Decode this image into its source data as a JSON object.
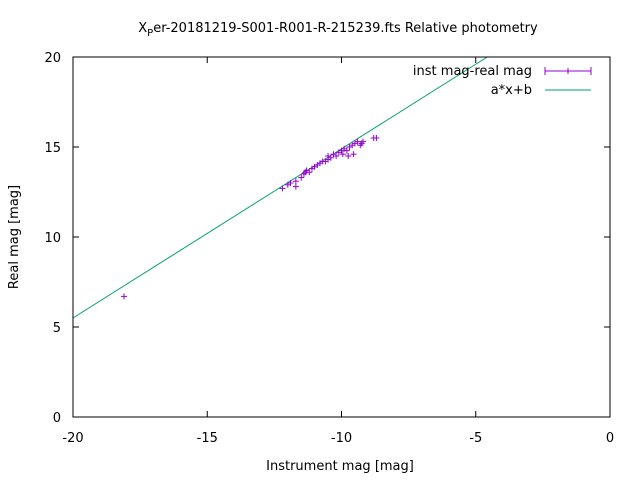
{
  "chart_data": {
    "type": "scatter",
    "title_symbol": "X",
    "title_subscript": "P",
    "title_rest": "er-20181219-S001-R001-R-215239.fts Relative photometry",
    "xlabel": "Instrument mag [mag]",
    "ylabel": "Real mag [mag]",
    "xlim": [
      -20,
      0
    ],
    "ylim": [
      0,
      20
    ],
    "x_ticks": [
      -20,
      -15,
      -10,
      -5,
      0
    ],
    "y_ticks": [
      0,
      5,
      10,
      15,
      20
    ],
    "grid": false,
    "legend_position": "top-right",
    "series": [
      {
        "name": "inst mag-real mag",
        "kind": "points-with-errorbars",
        "color": "#9400d3",
        "points": [
          [
            -18.1,
            6.7
          ],
          [
            -12.2,
            12.7
          ],
          [
            -12.0,
            12.9
          ],
          [
            -11.9,
            13.0
          ],
          [
            -11.7,
            13.1
          ],
          [
            -11.7,
            12.8
          ],
          [
            -11.5,
            13.3
          ],
          [
            -11.4,
            13.5
          ],
          [
            -11.35,
            13.6
          ],
          [
            -11.3,
            13.7
          ],
          [
            -11.2,
            13.6
          ],
          [
            -11.1,
            13.8
          ],
          [
            -11.0,
            13.9
          ],
          [
            -10.9,
            14.0
          ],
          [
            -10.8,
            14.1
          ],
          [
            -10.7,
            14.2
          ],
          [
            -10.6,
            14.2
          ],
          [
            -10.5,
            14.3
          ],
          [
            -10.5,
            14.5
          ],
          [
            -10.4,
            14.4
          ],
          [
            -10.3,
            14.6
          ],
          [
            -10.2,
            14.5
          ],
          [
            -10.1,
            14.7
          ],
          [
            -10.0,
            14.8
          ],
          [
            -9.95,
            14.6
          ],
          [
            -9.9,
            14.9
          ],
          [
            -9.8,
            14.8
          ],
          [
            -9.75,
            14.5
          ],
          [
            -9.7,
            15.0
          ],
          [
            -9.6,
            15.1
          ],
          [
            -9.55,
            14.6
          ],
          [
            -9.5,
            15.2
          ],
          [
            -9.4,
            15.3
          ],
          [
            -9.3,
            15.1
          ],
          [
            -9.25,
            15.2
          ],
          [
            -9.2,
            15.3
          ],
          [
            -8.8,
            15.5
          ],
          [
            -8.7,
            15.5
          ]
        ]
      },
      {
        "name": "a*x+b",
        "kind": "line",
        "color": "#009e73",
        "a": 0.94,
        "b": 24.3
      }
    ]
  }
}
